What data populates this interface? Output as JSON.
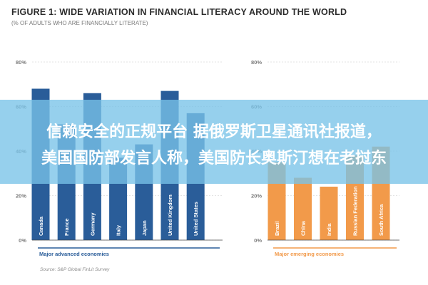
{
  "title": "FIGURE 1: WIDE VARIATION IN FINANCIAL LITERACY AROUND THE WORLD",
  "subtitle": "(% OF ADULTS WHO ARE FINANCIALLY LITERATE)",
  "source": "Source: S&P Global FinLit Survey",
  "overlay": {
    "line1": "信赖安全的正规平台 据俄罗斯卫星通讯社报道，",
    "line2": "美国国防部发言人称，美国防长奥斯汀想在老挝东"
  },
  "colors": {
    "advanced": "#2a5d99",
    "emerging": "#f29a4a",
    "text": "#2b2b2b",
    "muted": "#7a7a7a",
    "grid": "#c8c8c8",
    "overlay": "rgba(120,195,232,0.78)"
  },
  "chart_data": [
    {
      "type": "bar",
      "group_label": "Major advanced economies",
      "categories": [
        "Canada",
        "France",
        "Germany",
        "Italy",
        "Japan",
        "United Kingdom",
        "United States"
      ],
      "values": [
        68,
        52,
        66,
        37,
        43,
        67,
        57
      ],
      "ylim": [
        0,
        80
      ],
      "yticks": [
        "0%",
        "20%",
        "40%",
        "60%",
        "80%"
      ],
      "color": "#2a5d99"
    },
    {
      "type": "bar",
      "group_label": "Major emerging economies",
      "categories": [
        "Brazil",
        "China",
        "India",
        "Russian Federation",
        "South Africa"
      ],
      "values": [
        35,
        28,
        24,
        38,
        42
      ],
      "ylim": [
        0,
        80
      ],
      "yticks": [
        "0%",
        "20%",
        "40%",
        "60%",
        "80%"
      ],
      "color": "#f29a4a"
    }
  ]
}
